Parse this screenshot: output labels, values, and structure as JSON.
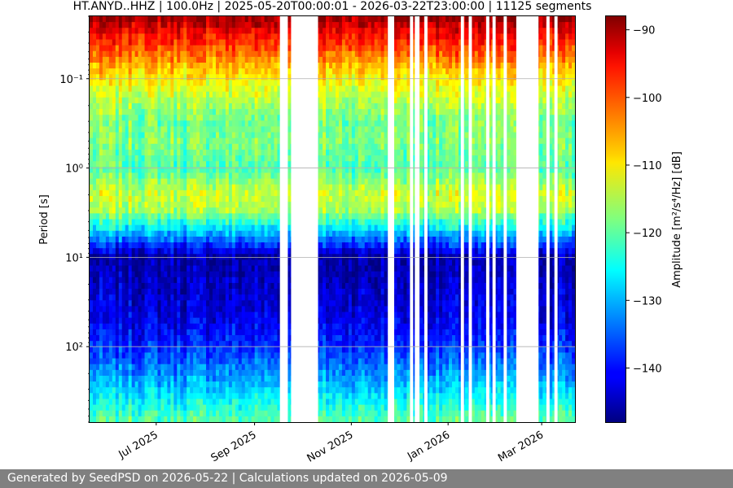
{
  "chart_data": {
    "type": "heatmap",
    "title": "HT.ANYD..HHZ | 100.0Hz | 2025-05-20T00:00:01 - 2026-03-22T23:00:00 | 11125 segments",
    "ylabel": "Period [s]",
    "y_scale": "log",
    "y_inverted": true,
    "ylim": [
      0.02,
      700
    ],
    "y_ticks": [
      {
        "value": 0.1,
        "label": "10⁻¹"
      },
      {
        "value": 1,
        "label": "10⁰"
      },
      {
        "value": 10,
        "label": "10¹"
      },
      {
        "value": 100,
        "label": "10²"
      }
    ],
    "grid": true,
    "xlim": [
      "2025-05-20",
      "2026-03-22"
    ],
    "x_ticks": [
      {
        "value": "2025-07-01",
        "label": "Jul 2025"
      },
      {
        "value": "2025-09-01",
        "label": "Sep 2025"
      },
      {
        "value": "2025-11-01",
        "label": "Nov 2025"
      },
      {
        "value": "2026-01-01",
        "label": "Jan 2026"
      },
      {
        "value": "2026-03-01",
        "label": "Mar 2026"
      }
    ],
    "colorbar": {
      "label": "Amplitude [m²/s⁴/Hz] [dB]",
      "colormap": "jet",
      "range": [
        -148,
        -88
      ],
      "ticks": [
        -90,
        -100,
        -110,
        -120,
        -130,
        -140
      ]
    },
    "amplitude_profile": {
      "period": [
        0.02,
        0.03,
        0.05,
        0.07,
        0.1,
        0.2,
        0.3,
        0.5,
        1,
        2,
        3,
        5,
        10,
        20,
        50,
        100,
        200,
        700
      ],
      "amplitude_db": [
        -89,
        -95,
        -101,
        -106,
        -110,
        -116,
        -119,
        -118,
        -121,
        -113,
        -116,
        -128,
        -146,
        -144,
        -142,
        -138,
        -132,
        -120
      ]
    },
    "data_gaps": [
      [
        "2025-09-17",
        "2025-09-22"
      ],
      [
        "2025-09-24",
        "2025-10-11"
      ],
      [
        "2025-11-24",
        "2025-11-28"
      ],
      [
        "2025-12-08",
        "2025-12-10"
      ],
      [
        "2025-12-11",
        "2025-12-14"
      ],
      [
        "2025-12-17",
        "2025-12-19"
      ],
      [
        "2026-01-09",
        "2026-01-11"
      ],
      [
        "2026-01-14",
        "2026-01-16"
      ],
      [
        "2026-01-25",
        "2026-01-27"
      ],
      [
        "2026-01-29",
        "2026-01-31"
      ],
      [
        "2026-02-05",
        "2026-02-07"
      ],
      [
        "2026-02-13",
        "2026-02-27"
      ],
      [
        "2026-03-04",
        "2026-03-06"
      ],
      [
        "2026-03-09",
        "2026-03-11"
      ]
    ]
  },
  "footer": {
    "text": "Generated by SeedPSD on 2026-05-22 | Calculations updated on 2026-05-09"
  }
}
